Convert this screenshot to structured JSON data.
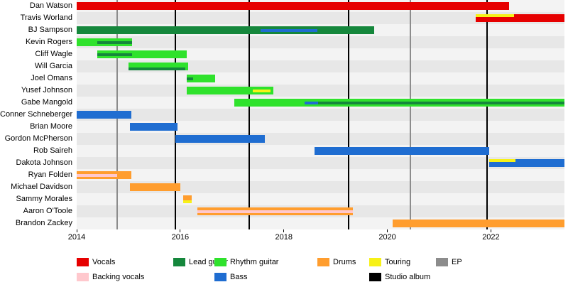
{
  "chart_data": {
    "type": "gantt",
    "description": "Band members timeline (roles over time with release markers)",
    "x_axis": {
      "min": 2014.0,
      "max": 2023.42,
      "ticks": [
        2014,
        2016,
        2018,
        2020,
        2022
      ],
      "tick_labels": [
        "2014",
        "2016",
        "2018",
        "2020",
        "2022"
      ]
    },
    "roles": {
      "vocals": {
        "label": "Vocals",
        "color": "#e60000"
      },
      "backing_vocals": {
        "label": "Backing vocals",
        "color": "#ffc8cd"
      },
      "lead_guitar": {
        "label": "Lead guitar",
        "color": "#15873c"
      },
      "rhythm_guitar": {
        "label": "Rhythm guitar",
        "color": "#2fe22c"
      },
      "bass": {
        "label": "Bass",
        "color": "#1f6dd1"
      },
      "drums": {
        "label": "Drums",
        "color": "#ff9d2e"
      },
      "touring": {
        "label": "Touring",
        "color": "#f7f117"
      },
      "studio_album": {
        "label": "Studio album",
        "color": "#000000"
      },
      "ep": {
        "label": "EP",
        "color": "#8c8c8c"
      }
    },
    "members": [
      {
        "name": "Dan Watson",
        "segments": [
          {
            "role": "vocals",
            "start": 2014.0,
            "end": 2022.35
          }
        ]
      },
      {
        "name": "Travis Worland",
        "segments": [
          {
            "role": "vocals",
            "start": 2021.7,
            "end": 2023.42
          },
          {
            "role": "touring",
            "start": 2021.7,
            "end": 2022.45,
            "thin": true,
            "lane": "top"
          }
        ]
      },
      {
        "name": "BJ Sampson",
        "segments": [
          {
            "role": "lead_guitar",
            "start": 2014.0,
            "end": 2019.75
          },
          {
            "role": "bass",
            "start": 2017.55,
            "end": 2018.65,
            "thin": true,
            "lane": "mid"
          }
        ]
      },
      {
        "name": "Kevin Rogers",
        "segments": [
          {
            "role": "rhythm_guitar",
            "start": 2014.0,
            "end": 2015.07
          },
          {
            "role": "lead_guitar",
            "start": 2014.4,
            "end": 2015.07,
            "thin": true,
            "lane": "mid"
          }
        ]
      },
      {
        "name": "Cliff Wagle",
        "segments": [
          {
            "role": "rhythm_guitar",
            "start": 2014.4,
            "end": 2016.12
          },
          {
            "role": "lead_guitar",
            "start": 2014.4,
            "end": 2015.07,
            "thin": true,
            "lane": "mid"
          }
        ]
      },
      {
        "name": "Will Garcia",
        "segments": [
          {
            "role": "rhythm_guitar",
            "start": 2015.0,
            "end": 2016.15
          },
          {
            "role": "lead_guitar",
            "start": 2015.0,
            "end": 2016.1,
            "thin": true,
            "lane": "bottom"
          }
        ]
      },
      {
        "name": "Joel Omans",
        "segments": [
          {
            "role": "rhythm_guitar",
            "start": 2016.12,
            "end": 2016.67
          },
          {
            "role": "lead_guitar",
            "start": 2016.12,
            "end": 2016.25,
            "thin": true,
            "lane": "mid"
          }
        ]
      },
      {
        "name": "Yusef Johnson",
        "segments": [
          {
            "role": "rhythm_guitar",
            "start": 2016.12,
            "end": 2017.8
          },
          {
            "role": "touring",
            "start": 2017.4,
            "end": 2017.75,
            "thin": true,
            "lane": "mid"
          }
        ]
      },
      {
        "name": "Gabe Mangold",
        "segments": [
          {
            "role": "rhythm_guitar",
            "start": 2017.05,
            "end": 2023.42
          },
          {
            "role": "bass",
            "start": 2018.4,
            "end": 2018.66,
            "thin": true,
            "lane": "mid"
          },
          {
            "role": "lead_guitar",
            "start": 2018.66,
            "end": 2023.42,
            "thin": true,
            "lane": "mid"
          }
        ]
      },
      {
        "name": "Conner Schneberger",
        "segments": [
          {
            "role": "bass",
            "start": 2014.0,
            "end": 2015.05
          }
        ]
      },
      {
        "name": "Brian Moore",
        "segments": [
          {
            "role": "bass",
            "start": 2015.03,
            "end": 2015.95
          }
        ]
      },
      {
        "name": "Gordon McPherson",
        "segments": [
          {
            "role": "bass",
            "start": 2015.9,
            "end": 2017.64
          }
        ]
      },
      {
        "name": "Rob Saireh",
        "segments": [
          {
            "role": "bass",
            "start": 2018.6,
            "end": 2021.97
          }
        ]
      },
      {
        "name": "Dakota Johnson",
        "segments": [
          {
            "role": "bass",
            "start": 2021.97,
            "end": 2023.42
          },
          {
            "role": "touring",
            "start": 2021.97,
            "end": 2022.48,
            "thin": true,
            "lane": "top"
          }
        ]
      },
      {
        "name": "Ryan Folden",
        "segments": [
          {
            "role": "drums",
            "start": 2014.0,
            "end": 2015.05
          },
          {
            "role": "backing_vocals",
            "start": 2014.0,
            "end": 2014.78,
            "thin": true,
            "lane": "mid"
          }
        ]
      },
      {
        "name": "Michael Davidson",
        "segments": [
          {
            "role": "drums",
            "start": 2015.03,
            "end": 2016.0
          }
        ]
      },
      {
        "name": "Sammy Morales",
        "segments": [
          {
            "role": "drums",
            "start": 2016.05,
            "end": 2016.22
          },
          {
            "role": "touring",
            "start": 2016.05,
            "end": 2016.22,
            "thin": true,
            "lane": "bottom"
          }
        ]
      },
      {
        "name": "Aaron O'Toole",
        "segments": [
          {
            "role": "drums",
            "start": 2016.33,
            "end": 2019.33
          },
          {
            "role": "backing_vocals",
            "start": 2016.33,
            "end": 2019.33,
            "thin": true,
            "lane": "mid"
          }
        ]
      },
      {
        "name": "Brandon Zackey",
        "segments": [
          {
            "role": "drums",
            "start": 2020.1,
            "end": 2023.42
          }
        ]
      }
    ],
    "releases": [
      {
        "kind": "ep",
        "year": 2014.78
      },
      {
        "kind": "studio_album",
        "year": 2015.9
      },
      {
        "kind": "studio_album",
        "year": 2017.33
      },
      {
        "kind": "studio_album",
        "year": 2019.25
      },
      {
        "kind": "ep",
        "year": 2020.45
      },
      {
        "kind": "studio_album",
        "year": 2021.92
      }
    ],
    "legend_rows": [
      [
        "vocals",
        "lead_guitar",
        "rhythm_guitar",
        "drums",
        "touring",
        "ep"
      ],
      [
        "backing_vocals",
        "bass",
        "studio_album"
      ]
    ]
  }
}
